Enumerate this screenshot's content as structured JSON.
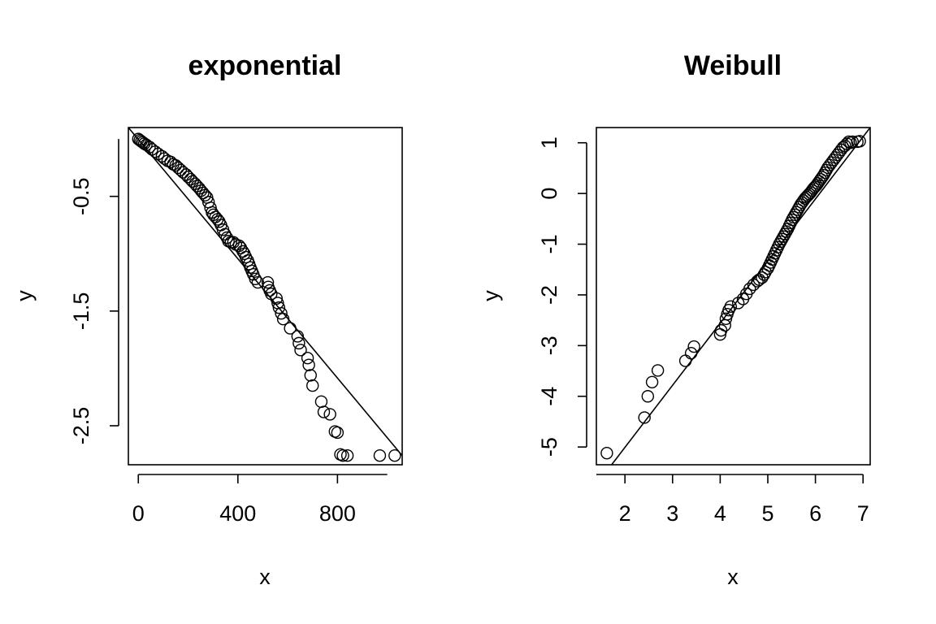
{
  "chart_data": [
    {
      "type": "scatter",
      "title": "exponential",
      "xlabel": "x",
      "ylabel": "y",
      "xlim": [
        -40,
        1060
      ],
      "ylim": [
        -2.84,
        0.1
      ],
      "xticks": [
        0,
        400,
        800
      ],
      "yticks": [
        -0.5,
        -1.5,
        -2.5
      ],
      "axis_x_range": [
        0,
        1000
      ],
      "axis_y_range": [
        -2.5,
        0
      ],
      "grid": false,
      "reference_line": {
        "from": [
          -40,
          0.1
        ],
        "to": [
          1060,
          -2.76
        ]
      },
      "points": {
        "x": [
          0,
          6,
          12,
          18,
          24,
          32,
          45,
          55,
          68,
          80,
          95,
          105,
          118,
          130,
          140,
          150,
          160,
          170,
          180,
          192,
          200,
          210,
          218,
          228,
          236,
          245,
          252,
          260,
          268,
          276,
          282,
          290,
          296,
          302,
          310,
          318,
          325,
          332,
          340,
          348,
          356,
          362,
          372,
          382,
          392,
          405,
          412,
          420,
          426,
          432,
          440,
          445,
          450,
          456,
          462,
          470,
          480,
          520,
          522,
          528,
          534,
          555,
          560,
          565,
          574,
          582,
          610,
          640,
          645,
          652,
          680,
          685,
          692,
          700,
          735,
          745,
          770,
          790,
          800,
          812,
          822,
          840,
          970,
          1030
        ],
        "y": [
          0,
          -0.01,
          -0.02,
          -0.03,
          -0.04,
          -0.05,
          -0.07,
          -0.09,
          -0.11,
          -0.13,
          -0.15,
          -0.17,
          -0.19,
          -0.2,
          -0.22,
          -0.23,
          -0.25,
          -0.27,
          -0.29,
          -0.31,
          -0.33,
          -0.35,
          -0.37,
          -0.39,
          -0.41,
          -0.43,
          -0.45,
          -0.47,
          -0.49,
          -0.51,
          -0.55,
          -0.6,
          -0.64,
          -0.66,
          -0.68,
          -0.7,
          -0.72,
          -0.75,
          -0.79,
          -0.83,
          -0.86,
          -0.89,
          -0.9,
          -0.9,
          -0.92,
          -0.93,
          -0.95,
          -0.98,
          -1.0,
          -1.03,
          -1.06,
          -1.09,
          -1.12,
          -1.15,
          -1.18,
          -1.22,
          -1.25,
          -1.25,
          -1.29,
          -1.32,
          -1.35,
          -1.39,
          -1.43,
          -1.47,
          -1.52,
          -1.57,
          -1.65,
          -1.72,
          -1.78,
          -1.84,
          -1.91,
          -1.97,
          -2.06,
          -2.15,
          -2.29,
          -2.38,
          -2.4,
          -2.55,
          -2.56,
          -2.75,
          -2.76,
          -2.76,
          -2.76,
          -2.76
        ]
      }
    },
    {
      "type": "scatter",
      "title": "Weibull",
      "xlabel": "x",
      "ylabel": "y",
      "xlim": [
        1.4,
        7.15
      ],
      "ylim": [
        -5.35,
        1.3
      ],
      "xticks": [
        2,
        3,
        4,
        5,
        6,
        7
      ],
      "yticks": [
        1,
        0,
        -1,
        -2,
        -3,
        -4,
        -5
      ],
      "axis_x_range": [
        1.4,
        7
      ],
      "axis_y_range": [
        -5,
        1
      ],
      "grid": false,
      "reference_line": {
        "from": [
          1.72,
          -5.35
        ],
        "to": [
          7.15,
          1.3
        ]
      },
      "points": {
        "x": [
          1.62,
          2.41,
          2.48,
          2.57,
          2.69,
          3.27,
          3.39,
          3.45,
          4.0,
          4.02,
          4.1,
          4.12,
          4.15,
          4.18,
          4.22,
          4.38,
          4.48,
          4.55,
          4.62,
          4.7,
          4.78,
          4.82,
          4.88,
          4.92,
          4.95,
          5.0,
          5.03,
          5.06,
          5.09,
          5.12,
          5.15,
          5.18,
          5.21,
          5.24,
          5.27,
          5.3,
          5.33,
          5.36,
          5.39,
          5.42,
          5.45,
          5.48,
          5.51,
          5.54,
          5.57,
          5.6,
          5.63,
          5.66,
          5.69,
          5.72,
          5.75,
          5.78,
          5.81,
          5.84,
          5.87,
          5.9,
          5.93,
          5.96,
          5.99,
          6.02,
          6.05,
          6.08,
          6.11,
          6.14,
          6.17,
          6.2,
          6.23,
          6.26,
          6.3,
          6.34,
          6.38,
          6.42,
          6.46,
          6.5,
          6.54,
          6.58,
          6.62,
          6.66,
          6.7,
          6.74,
          6.78,
          6.88,
          6.93
        ],
        "y": [
          -5.12,
          -4.42,
          -4.0,
          -3.72,
          -3.49,
          -3.3,
          -3.15,
          -3.02,
          -2.78,
          -2.7,
          -2.6,
          -2.47,
          -2.38,
          -2.3,
          -2.23,
          -2.16,
          -2.08,
          -1.98,
          -1.88,
          -1.8,
          -1.73,
          -1.7,
          -1.66,
          -1.6,
          -1.55,
          -1.48,
          -1.42,
          -1.36,
          -1.3,
          -1.24,
          -1.18,
          -1.12,
          -1.06,
          -1.0,
          -0.95,
          -0.9,
          -0.85,
          -0.8,
          -0.75,
          -0.7,
          -0.64,
          -0.58,
          -0.52,
          -0.47,
          -0.42,
          -0.37,
          -0.32,
          -0.27,
          -0.22,
          -0.18,
          -0.14,
          -0.1,
          -0.07,
          -0.04,
          -0.01,
          0.02,
          0.06,
          0.1,
          0.13,
          0.16,
          0.2,
          0.24,
          0.28,
          0.32,
          0.36,
          0.41,
          0.46,
          0.51,
          0.56,
          0.61,
          0.66,
          0.71,
          0.76,
          0.81,
          0.86,
          0.91,
          0.94,
          0.98,
          1.02,
          1.0,
          1.02,
          1.02,
          1.03
        ]
      }
    }
  ]
}
